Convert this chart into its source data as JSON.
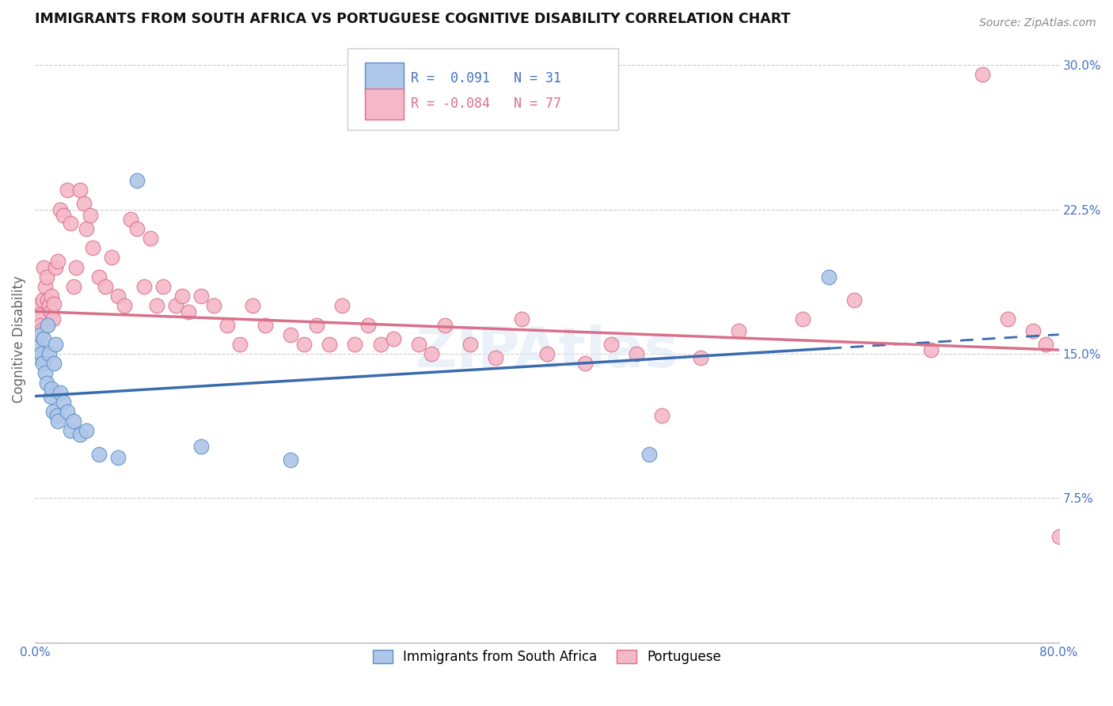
{
  "title": "IMMIGRANTS FROM SOUTH AFRICA VS PORTUGUESE COGNITIVE DISABILITY CORRELATION CHART",
  "source": "Source: ZipAtlas.com",
  "ylabel": "Cognitive Disability",
  "xmin": 0.0,
  "xmax": 0.8,
  "ymin": 0.0,
  "ymax": 0.315,
  "yticks_right": [
    0.075,
    0.15,
    0.225,
    0.3
  ],
  "yticklabels_right": [
    "7.5%",
    "15.0%",
    "22.5%",
    "30.0%"
  ],
  "series1_label": "Immigrants from South Africa",
  "series1_R": 0.091,
  "series1_N": 31,
  "series1_color": "#aec6e8",
  "series1_edge_color": "#5b8fc9",
  "series1_line_color": "#3a6baf",
  "series2_label": "Portuguese",
  "series2_R": -0.084,
  "series2_N": 77,
  "series2_color": "#f5b8c8",
  "series2_edge_color": "#d9708a",
  "series2_line_color": "#d9708a",
  "blue_intercept": 0.128,
  "blue_slope": 0.04,
  "pink_intercept": 0.172,
  "pink_slope": -0.025,
  "blue_x": [
    0.002,
    0.003,
    0.004,
    0.005,
    0.006,
    0.007,
    0.008,
    0.009,
    0.01,
    0.011,
    0.012,
    0.013,
    0.014,
    0.015,
    0.016,
    0.017,
    0.018,
    0.02,
    0.022,
    0.025,
    0.028,
    0.03,
    0.035,
    0.04,
    0.05,
    0.065,
    0.08,
    0.13,
    0.2,
    0.48,
    0.62
  ],
  "blue_y": [
    0.155,
    0.148,
    0.16,
    0.15,
    0.145,
    0.158,
    0.14,
    0.135,
    0.165,
    0.15,
    0.128,
    0.132,
    0.12,
    0.145,
    0.155,
    0.118,
    0.115,
    0.13,
    0.125,
    0.12,
    0.11,
    0.115,
    0.108,
    0.11,
    0.098,
    0.096,
    0.24,
    0.102,
    0.095,
    0.098,
    0.19
  ],
  "pink_x": [
    0.002,
    0.003,
    0.004,
    0.005,
    0.006,
    0.007,
    0.008,
    0.009,
    0.01,
    0.011,
    0.012,
    0.013,
    0.014,
    0.015,
    0.016,
    0.018,
    0.02,
    0.022,
    0.025,
    0.028,
    0.03,
    0.032,
    0.035,
    0.038,
    0.04,
    0.043,
    0.045,
    0.05,
    0.055,
    0.06,
    0.065,
    0.07,
    0.075,
    0.08,
    0.085,
    0.09,
    0.095,
    0.1,
    0.11,
    0.115,
    0.12,
    0.13,
    0.14,
    0.15,
    0.16,
    0.17,
    0.18,
    0.2,
    0.21,
    0.22,
    0.23,
    0.24,
    0.25,
    0.26,
    0.27,
    0.28,
    0.3,
    0.31,
    0.32,
    0.34,
    0.36,
    0.38,
    0.4,
    0.43,
    0.45,
    0.47,
    0.49,
    0.52,
    0.55,
    0.6,
    0.64,
    0.7,
    0.74,
    0.76,
    0.78,
    0.79,
    0.8
  ],
  "pink_y": [
    0.175,
    0.17,
    0.165,
    0.162,
    0.178,
    0.195,
    0.185,
    0.19,
    0.178,
    0.175,
    0.172,
    0.18,
    0.168,
    0.176,
    0.195,
    0.198,
    0.225,
    0.222,
    0.235,
    0.218,
    0.185,
    0.195,
    0.235,
    0.228,
    0.215,
    0.222,
    0.205,
    0.19,
    0.185,
    0.2,
    0.18,
    0.175,
    0.22,
    0.215,
    0.185,
    0.21,
    0.175,
    0.185,
    0.175,
    0.18,
    0.172,
    0.18,
    0.175,
    0.165,
    0.155,
    0.175,
    0.165,
    0.16,
    0.155,
    0.165,
    0.155,
    0.175,
    0.155,
    0.165,
    0.155,
    0.158,
    0.155,
    0.15,
    0.165,
    0.155,
    0.148,
    0.168,
    0.15,
    0.145,
    0.155,
    0.15,
    0.118,
    0.148,
    0.162,
    0.168,
    0.178,
    0.152,
    0.295,
    0.168,
    0.162,
    0.155,
    0.055
  ],
  "zipat_text_color": "#c8d8f0",
  "watermark": "ZIPAtlas"
}
